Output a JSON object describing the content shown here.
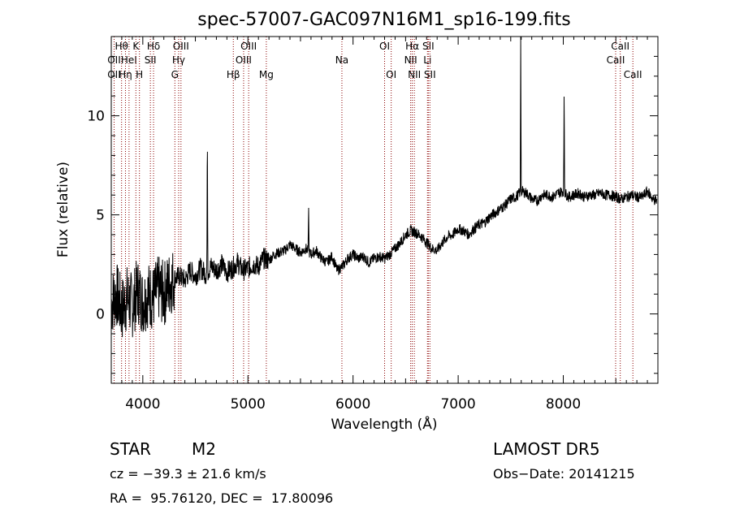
{
  "chart_data": {
    "type": "line",
    "title": "spec-57007-GAC097N16M1_sp16-199.fits",
    "xlabel": "Wavelength (Å)",
    "ylabel": "Flux (relative)",
    "xlim": [
      3700,
      8900
    ],
    "ylim": [
      -3.5,
      14
    ],
    "x_ticks": [
      4000,
      5000,
      6000,
      7000,
      8000
    ],
    "y_ticks": [
      0,
      5,
      10
    ],
    "grid": false,
    "line_color": "#000000",
    "marker_color": "#8b0000",
    "series": [
      {
        "x": [
          3700,
          3750,
          3800,
          3850,
          3900,
          3950,
          4000,
          4050,
          4100,
          4150,
          4200,
          4250,
          4300,
          4350,
          4400,
          4450,
          4500,
          4550,
          4600,
          4650,
          4700,
          4750,
          4800,
          4850,
          4900,
          4950,
          5000,
          5050,
          5100,
          5150,
          5200,
          5250,
          5300,
          5350,
          5400,
          5450,
          5500,
          5550,
          5600,
          5650,
          5700,
          5750,
          5800,
          5850,
          5900,
          5950,
          6000,
          6050,
          6100,
          6150,
          6200,
          6250,
          6300,
          6350,
          6400,
          6450,
          6500,
          6550,
          6600,
          6650,
          6700,
          6750,
          6800,
          6850,
          6900,
          6950,
          7000,
          7050,
          7100,
          7150,
          7200,
          7250,
          7300,
          7350,
          7400,
          7450,
          7500,
          7550,
          7600,
          7650,
          7700,
          7750,
          7800,
          7850,
          7900,
          7950,
          8000,
          8050,
          8100,
          8150,
          8200,
          8250,
          8300,
          8350,
          8400,
          8450,
          8500,
          8550,
          8600,
          8650,
          8700,
          8750,
          8800,
          8850,
          8890
        ],
        "y": [
          0.5,
          1.0,
          0.2,
          0.8,
          0.4,
          1.2,
          0.6,
          1.0,
          0.8,
          1.3,
          1.0,
          1.5,
          1.8,
          1.9,
          1.7,
          2.2,
          1.9,
          2.3,
          2.0,
          2.4,
          2.2,
          2.5,
          2.1,
          2.3,
          2.6,
          2.2,
          2.3,
          2.5,
          2.4,
          2.8,
          2.7,
          3.0,
          3.1,
          3.2,
          3.5,
          3.3,
          3.1,
          3.3,
          3.0,
          3.2,
          2.8,
          2.6,
          2.9,
          2.2,
          2.4,
          2.8,
          3.0,
          2.8,
          2.9,
          2.6,
          2.8,
          2.9,
          2.8,
          3.0,
          3.3,
          3.6,
          4.0,
          4.2,
          4.1,
          3.9,
          3.6,
          3.3,
          3.2,
          3.6,
          3.9,
          4.0,
          4.3,
          4.2,
          4.0,
          4.3,
          4.5,
          4.6,
          4.9,
          5.1,
          5.3,
          5.5,
          5.8,
          5.9,
          6.2,
          6.1,
          5.8,
          5.7,
          6.0,
          6.0,
          5.9,
          6.1,
          6.2,
          5.9,
          6.0,
          6.1,
          5.9,
          6.0,
          6.0,
          6.1,
          6.0,
          6.0,
          5.9,
          5.8,
          5.9,
          6.0,
          5.9,
          5.9,
          6.2,
          5.8,
          5.7
        ]
      }
    ],
    "emission_spikes": [
      {
        "x": 4614,
        "y": 9.7
      },
      {
        "x": 5577,
        "y": 5.6
      },
      {
        "x": 7595,
        "y": 14.0
      },
      {
        "x": 8008,
        "y": 11.5
      }
    ],
    "line_markers": [
      {
        "x": 3727,
        "labels": [
          "OII",
          "OII"
        ],
        "rows": [
          1,
          2
        ]
      },
      {
        "x": 3798,
        "labels": [
          "Hθ"
        ],
        "rows": [
          0
        ]
      },
      {
        "x": 3835,
        "labels": [
          "Hη"
        ],
        "rows": [
          2
        ]
      },
      {
        "x": 3869,
        "labels": [
          "HeI"
        ],
        "rows": [
          1
        ]
      },
      {
        "x": 3934,
        "labels": [
          "K"
        ],
        "rows": [
          0
        ]
      },
      {
        "x": 3968,
        "labels": [
          "H"
        ],
        "rows": [
          2
        ]
      },
      {
        "x": 4072,
        "labels": [
          "SII"
        ],
        "rows": [
          1
        ]
      },
      {
        "x": 4102,
        "labels": [
          "Hδ"
        ],
        "rows": [
          0
        ]
      },
      {
        "x": 4305,
        "labels": [
          "G"
        ],
        "rows": [
          2
        ]
      },
      {
        "x": 4341,
        "labels": [
          "Hγ"
        ],
        "rows": [
          1
        ]
      },
      {
        "x": 4363,
        "labels": [
          "OIII"
        ],
        "rows": [
          0
        ]
      },
      {
        "x": 4861,
        "labels": [
          "Hβ"
        ],
        "rows": [
          2
        ]
      },
      {
        "x": 4959,
        "labels": [
          "OIII"
        ],
        "rows": [
          1
        ]
      },
      {
        "x": 5007,
        "labels": [
          "OIII"
        ],
        "rows": [
          0
        ]
      },
      {
        "x": 5175,
        "labels": [
          "Mg"
        ],
        "rows": [
          2
        ]
      },
      {
        "x": 5894,
        "labels": [
          "Na"
        ],
        "rows": [
          1
        ]
      },
      {
        "x": 6300,
        "labels": [
          "OI"
        ],
        "rows": [
          0
        ]
      },
      {
        "x": 6363,
        "labels": [
          "OI"
        ],
        "rows": [
          2
        ]
      },
      {
        "x": 6548,
        "labels": [
          "NII"
        ],
        "rows": [
          1
        ]
      },
      {
        "x": 6563,
        "labels": [
          "Hα"
        ],
        "rows": [
          0
        ]
      },
      {
        "x": 6583,
        "labels": [
          "NII"
        ],
        "rows": [
          2
        ]
      },
      {
        "x": 6708,
        "labels": [
          "Li"
        ],
        "rows": [
          1
        ]
      },
      {
        "x": 6716,
        "labels": [
          "SII"
        ],
        "rows": [
          0
        ]
      },
      {
        "x": 6731,
        "labels": [
          "SII"
        ],
        "rows": [
          2
        ]
      },
      {
        "x": 8498,
        "labels": [
          "CaII"
        ],
        "rows": [
          1
        ]
      },
      {
        "x": 8542,
        "labels": [
          "CaII"
        ],
        "rows": [
          0
        ]
      },
      {
        "x": 8662,
        "labels": [
          "CaII"
        ],
        "rows": [
          2
        ]
      }
    ]
  },
  "info": {
    "object_class": "STAR",
    "subclass": "M2",
    "survey": "LAMOST DR5",
    "cz": "cz = −39.3 ± 21.6 km/s",
    "obs_date": "Obs−Date: 20141215",
    "coords": "RA =  95.76120, DEC =  17.80096"
  }
}
